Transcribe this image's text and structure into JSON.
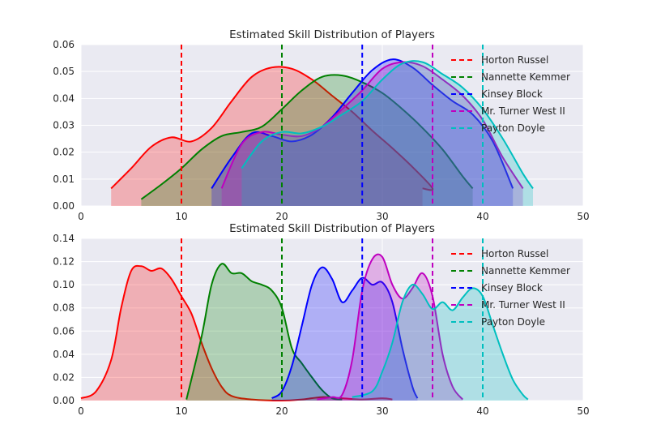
{
  "chart_data": [
    {
      "type": "area",
      "title": "Estimated Skill Distribution of Players",
      "xlabel": "",
      "ylabel": "",
      "xlim": [
        0,
        50
      ],
      "ylim": [
        0,
        0.06
      ],
      "xticks": [
        "0",
        "10",
        "20",
        "30",
        "40",
        "50"
      ],
      "yticks": [
        "0.00",
        "0.01",
        "0.02",
        "0.03",
        "0.04",
        "0.05",
        "0.06"
      ],
      "grid": true,
      "legend_placement": "top-right",
      "series": [
        {
          "name": "Horton Russel",
          "color": "#ff0000",
          "marker_x": 10,
          "points": [
            [
              3,
              0.0065
            ],
            [
              5,
              0.014
            ],
            [
              7,
              0.022
            ],
            [
              9,
              0.0255
            ],
            [
              11,
              0.024
            ],
            [
              13,
              0.029
            ],
            [
              15,
              0.039
            ],
            [
              17,
              0.048
            ],
            [
              19,
              0.0515
            ],
            [
              21,
              0.051
            ],
            [
              23,
              0.047
            ],
            [
              25,
              0.041
            ],
            [
              27,
              0.035
            ],
            [
              29,
              0.028
            ],
            [
              31,
              0.0215
            ],
            [
              33,
              0.0145
            ],
            [
              35,
              0.0065
            ],
            [
              34,
              0.0065
            ]
          ]
        },
        {
          "name": "Nannette Kemmer",
          "color": "#008000",
          "marker_x": 20,
          "points": [
            [
              6,
              0.0025
            ],
            [
              8,
              0.008
            ],
            [
              10,
              0.014
            ],
            [
              12,
              0.021
            ],
            [
              14,
              0.026
            ],
            [
              16,
              0.0275
            ],
            [
              18,
              0.0295
            ],
            [
              20,
              0.036
            ],
            [
              22,
              0.043
            ],
            [
              24,
              0.048
            ],
            [
              26,
              0.0485
            ],
            [
              28,
              0.046
            ],
            [
              30,
              0.042
            ],
            [
              32,
              0.036
            ],
            [
              34,
              0.029
            ],
            [
              36,
              0.021
            ],
            [
              38,
              0.011
            ],
            [
              39,
              0.0065
            ]
          ]
        },
        {
          "name": "Kinsey Block",
          "color": "#0000ff",
          "marker_x": 28,
          "points": [
            [
              13,
              0.0065
            ],
            [
              15,
              0.018
            ],
            [
              17,
              0.027
            ],
            [
              19,
              0.026
            ],
            [
              21,
              0.024
            ],
            [
              23,
              0.0265
            ],
            [
              25,
              0.033
            ],
            [
              27,
              0.042
            ],
            [
              29,
              0.0505
            ],
            [
              31,
              0.0545
            ],
            [
              33,
              0.0515
            ],
            [
              35,
              0.045
            ],
            [
              37,
              0.039
            ],
            [
              39,
              0.034
            ],
            [
              41,
              0.024
            ],
            [
              43,
              0.0065
            ]
          ]
        },
        {
          "name": "Mr. Turner West II",
          "color": "#bf00bf",
          "marker_x": 35,
          "points": [
            [
              14,
              0.0065
            ],
            [
              16,
              0.023
            ],
            [
              18,
              0.0275
            ],
            [
              20,
              0.0265
            ],
            [
              22,
              0.026
            ],
            [
              24,
              0.0295
            ],
            [
              26,
              0.036
            ],
            [
              28,
              0.043
            ],
            [
              30,
              0.051
            ],
            [
              32,
              0.0535
            ],
            [
              34,
              0.052
            ],
            [
              36,
              0.047
            ],
            [
              38,
              0.041
            ],
            [
              40,
              0.032
            ],
            [
              42,
              0.018
            ],
            [
              44,
              0.0065
            ]
          ]
        },
        {
          "name": "Payton Doyle",
          "color": "#00bfbf",
          "marker_x": 40,
          "points": [
            [
              16,
              0.014
            ],
            [
              18,
              0.024
            ],
            [
              20,
              0.0275
            ],
            [
              22,
              0.027
            ],
            [
              24,
              0.0295
            ],
            [
              26,
              0.034
            ],
            [
              28,
              0.039
            ],
            [
              30,
              0.047
            ],
            [
              32,
              0.053
            ],
            [
              34,
              0.0535
            ],
            [
              36,
              0.049
            ],
            [
              38,
              0.044
            ],
            [
              40,
              0.036
            ],
            [
              42,
              0.025
            ],
            [
              44,
              0.012
            ],
            [
              45,
              0.0065
            ]
          ]
        }
      ]
    },
    {
      "type": "area",
      "title": "Estimated Skill Distribution of Players",
      "xlabel": "",
      "ylabel": "",
      "xlim": [
        0,
        50
      ],
      "ylim": [
        0,
        0.14
      ],
      "xticks": [
        "0",
        "10",
        "20",
        "30",
        "40",
        "50"
      ],
      "yticks": [
        "0.00",
        "0.02",
        "0.04",
        "0.06",
        "0.08",
        "0.10",
        "0.12",
        "0.14"
      ],
      "grid": true,
      "legend_placement": "top-right",
      "series": [
        {
          "name": "Horton Russel",
          "color": "#ff0000",
          "marker_x": 10,
          "points": [
            [
              0,
              0.002
            ],
            [
              1.5,
              0.008
            ],
            [
              3,
              0.035
            ],
            [
              4,
              0.08
            ],
            [
              5,
              0.112
            ],
            [
              6,
              0.116
            ],
            [
              7,
              0.112
            ],
            [
              8,
              0.114
            ],
            [
              9,
              0.105
            ],
            [
              10,
              0.09
            ],
            [
              11,
              0.075
            ],
            [
              12,
              0.05
            ],
            [
              13,
              0.028
            ],
            [
              14,
              0.012
            ],
            [
              15,
              0.004
            ],
            [
              17,
              0.001
            ],
            [
              20,
              0.0
            ],
            [
              22,
              0.001
            ],
            [
              24,
              0.003
            ],
            [
              26,
              0.002
            ],
            [
              28,
              0.001
            ],
            [
              30,
              0.002
            ],
            [
              31,
              0.001
            ]
          ]
        },
        {
          "name": "Nannette Kemmer",
          "color": "#008000",
          "marker_x": 20,
          "points": [
            [
              10.5,
              0.001
            ],
            [
              12,
              0.055
            ],
            [
              13,
              0.1
            ],
            [
              14,
              0.118
            ],
            [
              15,
              0.11
            ],
            [
              16,
              0.11
            ],
            [
              17,
              0.103
            ],
            [
              18,
              0.1
            ],
            [
              19,
              0.095
            ],
            [
              20,
              0.08
            ],
            [
              21,
              0.045
            ],
            [
              22,
              0.032
            ],
            [
              23,
              0.02
            ],
            [
              24,
              0.009
            ],
            [
              25,
              0.002
            ],
            [
              26,
              0.001
            ]
          ]
        },
        {
          "name": "Kinsey Block",
          "color": "#0000ff",
          "marker_x": 28,
          "points": [
            [
              19,
              0.002
            ],
            [
              20,
              0.008
            ],
            [
              21,
              0.03
            ],
            [
              22,
              0.065
            ],
            [
              23,
              0.1
            ],
            [
              24,
              0.115
            ],
            [
              25,
              0.105
            ],
            [
              26,
              0.085
            ],
            [
              27,
              0.095
            ],
            [
              28,
              0.106
            ],
            [
              29,
              0.1
            ],
            [
              30,
              0.102
            ],
            [
              31,
              0.085
            ],
            [
              32,
              0.045
            ],
            [
              33,
              0.012
            ],
            [
              33.5,
              0.002
            ]
          ]
        },
        {
          "name": "Mr. Turner West II",
          "color": "#bf00bf",
          "marker_x": 35,
          "points": [
            [
              23.5,
              0.001
            ],
            [
              25,
              0.003
            ],
            [
              26,
              0.005
            ],
            [
              27,
              0.035
            ],
            [
              28,
              0.095
            ],
            [
              29,
              0.122
            ],
            [
              30,
              0.124
            ],
            [
              31,
              0.1
            ],
            [
              32,
              0.088
            ],
            [
              33,
              0.097
            ],
            [
              34,
              0.11
            ],
            [
              35,
              0.09
            ],
            [
              36,
              0.04
            ],
            [
              37,
              0.012
            ],
            [
              38,
              0.001
            ]
          ]
        },
        {
          "name": "Payton Doyle",
          "color": "#00bfbf",
          "marker_x": 40,
          "points": [
            [
              27,
              0.003
            ],
            [
              29,
              0.008
            ],
            [
              30,
              0.025
            ],
            [
              31,
              0.05
            ],
            [
              32,
              0.085
            ],
            [
              33,
              0.1
            ],
            [
              34,
              0.092
            ],
            [
              35,
              0.079
            ],
            [
              36,
              0.085
            ],
            [
              37,
              0.078
            ],
            [
              38,
              0.089
            ],
            [
              39,
              0.097
            ],
            [
              40,
              0.09
            ],
            [
              41,
              0.065
            ],
            [
              42,
              0.04
            ],
            [
              43,
              0.018
            ],
            [
              44,
              0.005
            ],
            [
              44.5,
              0.001
            ]
          ]
        }
      ]
    }
  ]
}
